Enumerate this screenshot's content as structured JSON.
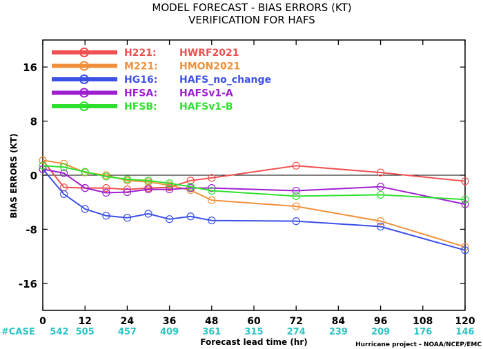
{
  "chart_data": {
    "type": "line",
    "title": "MODEL FORECAST - BIAS ERRORS (KT)",
    "subtitle": "VERIFICATION FOR HAFS",
    "ylabel": "BIAS ERRORS (KT)",
    "xlabel": "Forecast lead time (hr)",
    "credit": "Hurricane project - NOAA/NCEP/EMC",
    "xlim": [
      0,
      120
    ],
    "ylim": [
      -20,
      20
    ],
    "x_ticks": [
      0,
      12,
      24,
      36,
      48,
      60,
      72,
      84,
      96,
      108,
      120
    ],
    "y_ticks": [
      16,
      8,
      0,
      -8,
      -16
    ],
    "grid": false,
    "legend_position": "top-left",
    "cases_label": "#CASE",
    "cases": [
      542,
      505,
      457,
      409,
      361,
      315,
      274,
      239,
      209,
      176,
      146
    ],
    "series": [
      {
        "code": "H221:",
        "name": "HWRF2021",
        "color": "#f05050",
        "x": [
          0,
          6,
          12,
          18,
          24,
          30,
          36,
          42,
          48,
          72,
          96,
          120
        ],
        "y": [
          2.2,
          -1.8,
          -1.9,
          -1.9,
          -2.1,
          -1.9,
          -1.8,
          -0.8,
          -0.4,
          1.4,
          0.4,
          -0.9
        ]
      },
      {
        "code": "M221:",
        "name": "HMON2021",
        "color": "#f0903a",
        "x": [
          0,
          6,
          12,
          18,
          24,
          30,
          36,
          42,
          48,
          72,
          96,
          120
        ],
        "y": [
          2.2,
          1.7,
          0.4,
          0.0,
          -0.8,
          -1.0,
          -1.5,
          -2.2,
          -3.7,
          -4.6,
          -6.8,
          -10.6
        ]
      },
      {
        "code": "HG16:",
        "name": "HAFS_no_change",
        "color": "#3c50e6",
        "x": [
          0,
          6,
          12,
          18,
          24,
          30,
          36,
          42,
          48,
          72,
          96,
          120
        ],
        "y": [
          0.9,
          -2.8,
          -5.0,
          -6.0,
          -6.3,
          -5.7,
          -6.5,
          -6.1,
          -6.7,
          -6.8,
          -7.6,
          -11.1
        ]
      },
      {
        "code": "HFSA:",
        "name": "HAFSv1-A",
        "color": "#9e1ed2",
        "x": [
          0,
          6,
          12,
          18,
          24,
          30,
          36,
          42,
          48,
          72,
          96,
          120
        ],
        "y": [
          0.9,
          0.3,
          -1.9,
          -2.6,
          -2.5,
          -2.1,
          -2.1,
          -1.9,
          -1.9,
          -2.3,
          -1.7,
          -4.3
        ]
      },
      {
        "code": "HFSB:",
        "name": "HAFSv1-B",
        "color": "#2ee02e",
        "x": [
          0,
          6,
          12,
          18,
          24,
          30,
          36,
          42,
          48,
          72,
          96,
          120
        ],
        "y": [
          1.4,
          1.2,
          0.5,
          -0.2,
          -0.6,
          -0.8,
          -1.2,
          -1.7,
          -2.3,
          -3.1,
          -2.9,
          -3.6
        ]
      }
    ]
  }
}
